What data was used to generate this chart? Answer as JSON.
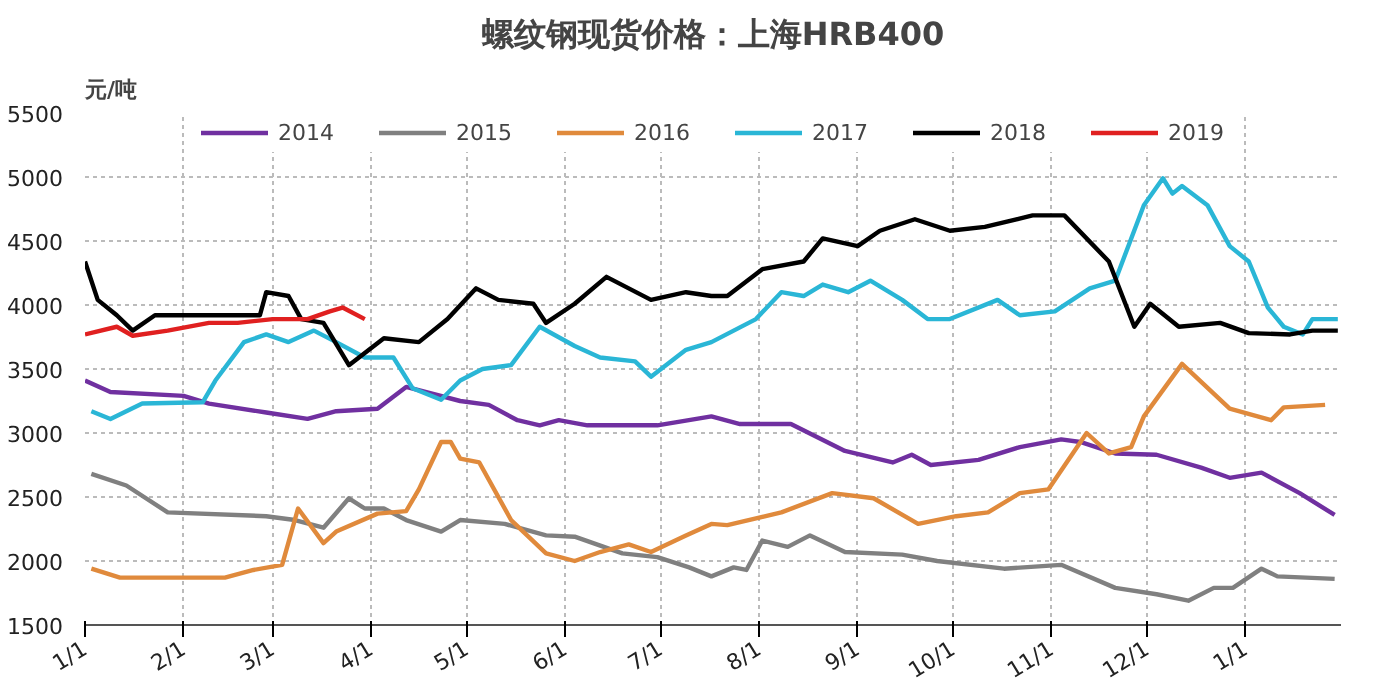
{
  "chart_data": {
    "type": "line",
    "title": "螺纹钢现货价格：上海HRB400",
    "ylabel": "元/吨",
    "xlim": [
      "2019-01-01",
      "2020-01-31"
    ],
    "ylim": [
      1500,
      5500
    ],
    "xticks": [
      {
        "value": "2019-01-01",
        "label": "1/1"
      },
      {
        "value": "2019-02-01",
        "label": "2/1"
      },
      {
        "value": "2019-03-01",
        "label": "3/1"
      },
      {
        "value": "2019-04-01",
        "label": "4/1"
      },
      {
        "value": "2019-05-01",
        "label": "5/1"
      },
      {
        "value": "2019-06-01",
        "label": "6/1"
      },
      {
        "value": "2019-07-01",
        "label": "7/1"
      },
      {
        "value": "2019-08-01",
        "label": "8/1"
      },
      {
        "value": "2019-09-01",
        "label": "9/1"
      },
      {
        "value": "2019-10-01",
        "label": "10/1"
      },
      {
        "value": "2019-11-01",
        "label": "11/1"
      },
      {
        "value": "2019-12-01",
        "label": "12/1"
      },
      {
        "value": "2020-01-01",
        "label": "1/1"
      }
    ],
    "yticks": [
      1500,
      2000,
      2500,
      3000,
      3500,
      4000,
      4500,
      5000,
      5500
    ],
    "grid": true,
    "legend": "top",
    "line_style": "solid",
    "series": [
      {
        "name": "2014",
        "color": "#7030a0",
        "x": [
          "2019-01-01",
          "2019-01-09",
          "2019-02-01",
          "2019-02-09",
          "2019-02-27",
          "2019-03-12",
          "2019-03-21",
          "2019-04-03",
          "2019-04-12",
          "2019-04-29",
          "2019-05-08",
          "2019-05-17",
          "2019-05-24",
          "2019-05-30",
          "2019-06-08",
          "2019-06-30",
          "2019-07-17",
          "2019-07-26",
          "2019-08-11",
          "2019-08-28",
          "2019-09-12",
          "2019-09-18",
          "2019-09-24",
          "2019-10-09",
          "2019-10-22",
          "2019-11-04",
          "2019-11-10",
          "2019-11-21",
          "2019-12-04",
          "2019-12-18",
          "2019-12-27",
          "2020-01-06",
          "2020-01-18",
          "2020-01-29"
        ],
        "values": [
          3410,
          3320,
          3290,
          3230,
          3160,
          3110,
          3170,
          3190,
          3360,
          3250,
          3220,
          3100,
          3060,
          3100,
          3060,
          3060,
          3130,
          3070,
          3070,
          2860,
          2770,
          2830,
          2750,
          2790,
          2890,
          2950,
          2930,
          2840,
          2830,
          2730,
          2650,
          2690,
          2530,
          2360
        ]
      },
      {
        "name": "2015",
        "color": "#808080",
        "x": [
          "2019-01-03",
          "2019-01-14",
          "2019-01-27",
          "2019-02-27",
          "2019-03-08",
          "2019-03-17",
          "2019-03-25",
          "2019-03-30",
          "2019-04-05",
          "2019-04-12",
          "2019-04-23",
          "2019-04-29",
          "2019-05-13",
          "2019-05-26",
          "2019-06-04",
          "2019-06-19",
          "2019-06-30",
          "2019-07-10",
          "2019-07-17",
          "2019-07-24",
          "2019-07-28",
          "2019-08-02",
          "2019-08-10",
          "2019-08-17",
          "2019-08-28",
          "2019-09-15",
          "2019-09-26",
          "2019-10-17",
          "2019-11-04",
          "2019-11-21",
          "2019-12-04",
          "2019-12-14",
          "2019-12-22",
          "2019-12-28",
          "2020-01-06",
          "2020-01-11",
          "2020-01-29"
        ],
        "values": [
          2680,
          2590,
          2380,
          2350,
          2320,
          2260,
          2490,
          2410,
          2410,
          2320,
          2230,
          2320,
          2290,
          2200,
          2190,
          2060,
          2030,
          1950,
          1880,
          1950,
          1930,
          2160,
          2110,
          2200,
          2070,
          2050,
          2000,
          1940,
          1970,
          1790,
          1740,
          1690,
          1790,
          1790,
          1940,
          1880,
          1860
        ]
      },
      {
        "name": "2016",
        "color": "#e08a3c",
        "x": [
          "2019-01-03",
          "2019-01-12",
          "2019-02-14",
          "2019-02-23",
          "2019-03-04",
          "2019-03-09",
          "2019-03-17",
          "2019-03-21",
          "2019-04-03",
          "2019-04-12",
          "2019-04-16",
          "2019-04-23",
          "2019-04-26",
          "2019-04-29",
          "2019-05-05",
          "2019-05-15",
          "2019-05-26",
          "2019-06-04",
          "2019-06-12",
          "2019-06-21",
          "2019-06-28",
          "2019-07-09",
          "2019-07-17",
          "2019-07-22",
          "2019-08-08",
          "2019-08-24",
          "2019-09-06",
          "2019-09-20",
          "2019-10-02",
          "2019-10-12",
          "2019-10-22",
          "2019-10-31",
          "2019-11-12",
          "2019-11-19",
          "2019-11-26",
          "2019-11-30",
          "2019-12-12",
          "2019-12-27",
          "2020-01-09",
          "2020-01-13",
          "2020-01-26"
        ],
        "values": [
          1940,
          1870,
          1870,
          1930,
          1970,
          2410,
          2140,
          2230,
          2370,
          2390,
          2560,
          2930,
          2930,
          2800,
          2770,
          2320,
          2060,
          2000,
          2070,
          2130,
          2070,
          2200,
          2290,
          2280,
          2380,
          2530,
          2490,
          2290,
          2350,
          2380,
          2530,
          2560,
          3000,
          2840,
          2890,
          3130,
          3540,
          3190,
          3100,
          3200,
          3220
        ]
      },
      {
        "name": "2017",
        "color": "#2ab6d6",
        "x": [
          "2019-01-03",
          "2019-01-09",
          "2019-01-19",
          "2019-02-07",
          "2019-02-11",
          "2019-02-20",
          "2019-02-27",
          "2019-03-06",
          "2019-03-14",
          "2019-03-21",
          "2019-03-30",
          "2019-04-08",
          "2019-04-14",
          "2019-04-23",
          "2019-04-29",
          "2019-05-06",
          "2019-05-15",
          "2019-05-24",
          "2019-06-04",
          "2019-06-12",
          "2019-06-23",
          "2019-06-28",
          "2019-07-09",
          "2019-07-17",
          "2019-07-31",
          "2019-08-08",
          "2019-08-15",
          "2019-08-21",
          "2019-08-29",
          "2019-09-05",
          "2019-09-15",
          "2019-09-23",
          "2019-09-30",
          "2019-10-15",
          "2019-10-22",
          "2019-11-02",
          "2019-11-13",
          "2019-11-21",
          "2019-11-30",
          "2019-12-06",
          "2019-12-09",
          "2019-12-12",
          "2019-12-20",
          "2019-12-27",
          "2020-01-02",
          "2020-01-08",
          "2020-01-13",
          "2020-01-19",
          "2020-01-22",
          "2020-01-30"
        ],
        "values": [
          3170,
          3110,
          3230,
          3240,
          3410,
          3710,
          3770,
          3710,
          3800,
          3710,
          3590,
          3590,
          3350,
          3260,
          3410,
          3500,
          3530,
          3830,
          3680,
          3590,
          3560,
          3440,
          3650,
          3710,
          3890,
          4100,
          4070,
          4160,
          4100,
          4190,
          4040,
          3890,
          3890,
          4040,
          3920,
          3950,
          4130,
          4190,
          4780,
          4990,
          4870,
          4930,
          4780,
          4460,
          4340,
          3980,
          3830,
          3770,
          3890,
          3890
        ]
      },
      {
        "name": "2018",
        "color": "#000000",
        "x": [
          "2019-01-01",
          "2019-01-05",
          "2019-01-11",
          "2019-01-16",
          "2019-01-23",
          "2019-02-25",
          "2019-02-27",
          "2019-03-06",
          "2019-03-10",
          "2019-03-17",
          "2019-03-25",
          "2019-04-05",
          "2019-04-16",
          "2019-04-25",
          "2019-05-04",
          "2019-05-11",
          "2019-05-22",
          "2019-05-26",
          "2019-06-04",
          "2019-06-14",
          "2019-06-28",
          "2019-07-09",
          "2019-07-17",
          "2019-07-22",
          "2019-08-02",
          "2019-08-15",
          "2019-08-21",
          "2019-09-01",
          "2019-09-08",
          "2019-09-19",
          "2019-09-30",
          "2019-10-11",
          "2019-10-26",
          "2019-11-05",
          "2019-11-19",
          "2019-11-27",
          "2019-12-02",
          "2019-12-11",
          "2019-12-24",
          "2020-01-02",
          "2020-01-15",
          "2020-01-22",
          "2020-01-30"
        ],
        "values": [
          4340,
          4040,
          3920,
          3800,
          3920,
          3920,
          4100,
          4070,
          3890,
          3860,
          3530,
          3740,
          3710,
          3890,
          4130,
          4040,
          4010,
          3860,
          4010,
          4220,
          4040,
          4100,
          4070,
          4070,
          4280,
          4340,
          4520,
          4460,
          4580,
          4670,
          4580,
          4610,
          4700,
          4700,
          4340,
          3830,
          4010,
          3830,
          3860,
          3780,
          3770,
          3800,
          3800
        ]
      },
      {
        "name": "2019",
        "color": "#e02020",
        "x": [
          "2019-01-01",
          "2019-01-11",
          "2019-01-16",
          "2019-01-27",
          "2019-02-09",
          "2019-02-18",
          "2019-03-01",
          "2019-03-12",
          "2019-03-19",
          "2019-03-23",
          "2019-03-30"
        ],
        "values": [
          3770,
          3830,
          3760,
          3800,
          3860,
          3860,
          3890,
          3890,
          3950,
          3980,
          3890
        ]
      }
    ]
  }
}
